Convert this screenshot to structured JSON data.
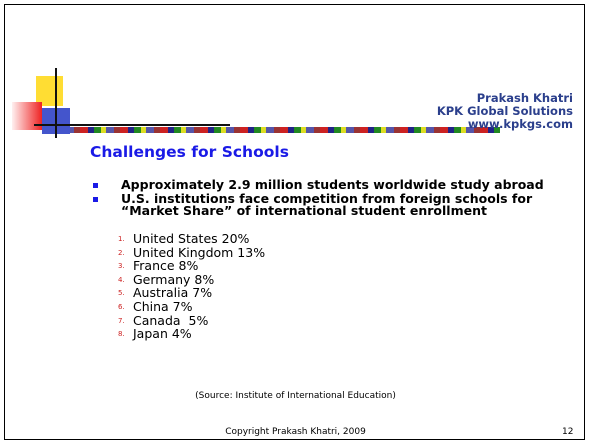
{
  "header": {
    "author": "Prakash Khatri",
    "company": "KPK Global Solutions",
    "website": "www.kpkgs.com"
  },
  "title": "Challenges for Schools",
  "bullets": [
    "Approximately 2.9 million students worldwide study abroad",
    "U.S. institutions face competition from foreign schools for “Market Share” of international student enrollment"
  ],
  "list": [
    {
      "marker": "1.",
      "text": "United States 20%"
    },
    {
      "marker": "2.",
      "text": "United Kingdom 13%"
    },
    {
      "marker": "3.",
      "text": "France 8%"
    },
    {
      "marker": "4.",
      "text": "Germany 8%"
    },
    {
      "marker": "5.",
      "text": "Australia 7%"
    },
    {
      "marker": "6.",
      "text": "China 7%"
    },
    {
      "marker": "7.",
      "text": "Canada  5%"
    },
    {
      "marker": "8.",
      "text": "Japan 4%"
    }
  ],
  "source": "(Source: Institute of International Education)",
  "footer": {
    "copyright": "Copyright Prakash Khatri, 2009",
    "page": "12"
  }
}
